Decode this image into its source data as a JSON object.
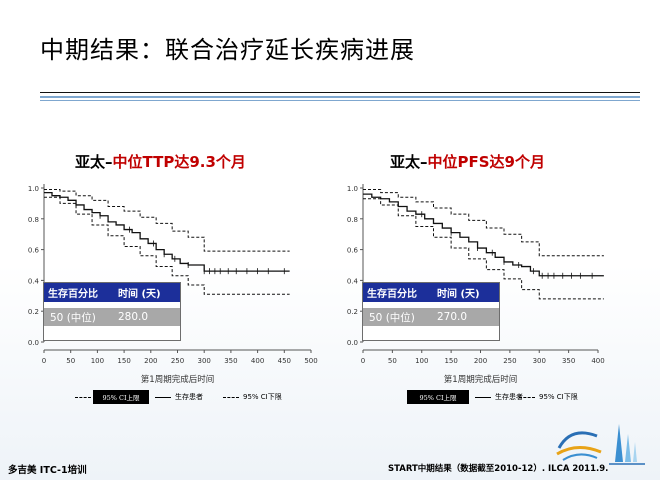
{
  "slide": {
    "title": "中期结果：联合治疗延长疾病进展",
    "footer_left": "多吉美 ITC-1培训",
    "footer_right": "START中期结果（数据截至2010-12）. ILCA 2011.9."
  },
  "colors": {
    "heading_red": "#c00000",
    "table_header": "#1c2f9a",
    "table_row": "#a8a8a8",
    "accent_blue": "#7fa7cf"
  },
  "panels": [
    {
      "heading_prefix": "亚太–",
      "heading_metric": "中位TTP达9.3个月",
      "table": {
        "col1_header": "生存百分比",
        "col2_header": "时间 (天)",
        "row_label": "50 (中位)",
        "row_value": "280.0"
      },
      "legend": {
        "upper_ci": "95% CI上限",
        "survivors": "生存患者",
        "lower_ci": "95% CI下限"
      }
    },
    {
      "heading_prefix": "亚太–",
      "heading_metric": "中位PFS达9个月",
      "table": {
        "col1_header": "生存百分比",
        "col2_header": "时间 (天)",
        "row_label": "50 (中位)",
        "row_value": "270.0"
      },
      "legend": {
        "upper_ci": "95% CI上限",
        "survivors": "生存患者",
        "lower_ci": "95% CI下限"
      }
    }
  ],
  "chart_data": [
    {
      "type": "line",
      "xlabel": "第1周期完成后时间",
      "ylabel": "",
      "xlim": [
        0,
        500
      ],
      "ylim": [
        0,
        1.0
      ],
      "x_ticks": [
        0,
        50,
        100,
        150,
        200,
        250,
        300,
        350,
        400,
        450,
        500
      ],
      "y_ticks": [
        "0.0",
        "0.2",
        "0.4",
        "0.6",
        "0.8",
        "1.0"
      ],
      "series": [
        {
          "name": "生存患者",
          "style": "solid",
          "points": [
            [
              0,
              0.97
            ],
            [
              15,
              0.95
            ],
            [
              30,
              0.94
            ],
            [
              45,
              0.92
            ],
            [
              60,
              0.89
            ],
            [
              75,
              0.86
            ],
            [
              90,
              0.84
            ],
            [
              105,
              0.82
            ],
            [
              120,
              0.78
            ],
            [
              135,
              0.76
            ],
            [
              150,
              0.73
            ],
            [
              165,
              0.71
            ],
            [
              180,
              0.67
            ],
            [
              195,
              0.64
            ],
            [
              210,
              0.6
            ],
            [
              225,
              0.57
            ],
            [
              240,
              0.54
            ],
            [
              255,
              0.51
            ],
            [
              270,
              0.5
            ],
            [
              285,
              0.5
            ],
            [
              300,
              0.46
            ],
            [
              460,
              0.46
            ]
          ]
        },
        {
          "name": "95% CI上限",
          "style": "dashed",
          "points": [
            [
              0,
              0.99
            ],
            [
              30,
              0.98
            ],
            [
              60,
              0.95
            ],
            [
              90,
              0.92
            ],
            [
              120,
              0.88
            ],
            [
              150,
              0.85
            ],
            [
              180,
              0.81
            ],
            [
              210,
              0.77
            ],
            [
              240,
              0.72
            ],
            [
              270,
              0.68
            ],
            [
              300,
              0.59
            ],
            [
              460,
              0.59
            ]
          ]
        },
        {
          "name": "95% CI下限",
          "style": "dashed",
          "points": [
            [
              0,
              0.94
            ],
            [
              30,
              0.9
            ],
            [
              60,
              0.83
            ],
            [
              90,
              0.76
            ],
            [
              120,
              0.69
            ],
            [
              150,
              0.62
            ],
            [
              180,
              0.56
            ],
            [
              210,
              0.49
            ],
            [
              240,
              0.43
            ],
            [
              270,
              0.37
            ],
            [
              300,
              0.31
            ],
            [
              460,
              0.31
            ]
          ]
        }
      ],
      "censor_x": [
        105,
        160,
        205,
        225,
        245,
        270,
        300,
        310,
        320,
        330,
        345,
        360,
        380,
        400,
        420,
        450
      ],
      "survivor_censor_y": 0.46
    },
    {
      "type": "line",
      "xlabel": "第1周期完成后时间",
      "ylabel": "",
      "xlim": [
        0,
        400
      ],
      "ylim": [
        0,
        1.0
      ],
      "x_ticks": [
        0,
        50,
        100,
        150,
        200,
        250,
        300,
        350,
        400
      ],
      "y_ticks": [
        "0.0",
        "0.2",
        "0.4",
        "0.6",
        "0.8",
        "1.0"
      ],
      "series": [
        {
          "name": "生存患者",
          "style": "solid",
          "points": [
            [
              0,
              0.96
            ],
            [
              15,
              0.94
            ],
            [
              30,
              0.93
            ],
            [
              45,
              0.91
            ],
            [
              60,
              0.88
            ],
            [
              75,
              0.85
            ],
            [
              90,
              0.83
            ],
            [
              105,
              0.8
            ],
            [
              120,
              0.77
            ],
            [
              135,
              0.74
            ],
            [
              150,
              0.71
            ],
            [
              165,
              0.68
            ],
            [
              180,
              0.65
            ],
            [
              195,
              0.61
            ],
            [
              210,
              0.58
            ],
            [
              225,
              0.55
            ],
            [
              240,
              0.52
            ],
            [
              255,
              0.5
            ],
            [
              270,
              0.49
            ],
            [
              285,
              0.46
            ],
            [
              300,
              0.43
            ],
            [
              410,
              0.43
            ]
          ]
        },
        {
          "name": "95% CI上限",
          "style": "dashed",
          "points": [
            [
              0,
              0.99
            ],
            [
              30,
              0.97
            ],
            [
              60,
              0.94
            ],
            [
              90,
              0.91
            ],
            [
              120,
              0.87
            ],
            [
              150,
              0.83
            ],
            [
              180,
              0.79
            ],
            [
              210,
              0.74
            ],
            [
              240,
              0.7
            ],
            [
              270,
              0.65
            ],
            [
              300,
              0.56
            ],
            [
              410,
              0.56
            ]
          ]
        },
        {
          "name": "95% CI下限",
          "style": "dashed",
          "points": [
            [
              0,
              0.93
            ],
            [
              30,
              0.89
            ],
            [
              60,
              0.82
            ],
            [
              90,
              0.75
            ],
            [
              120,
              0.68
            ],
            [
              150,
              0.61
            ],
            [
              180,
              0.54
            ],
            [
              210,
              0.47
            ],
            [
              240,
              0.41
            ],
            [
              270,
              0.34
            ],
            [
              300,
              0.28
            ],
            [
              410,
              0.28
            ]
          ]
        }
      ],
      "censor_x": [
        100,
        150,
        195,
        220,
        240,
        265,
        290,
        305,
        315,
        325,
        340,
        355,
        370,
        390
      ],
      "survivor_censor_y": 0.43
    }
  ]
}
